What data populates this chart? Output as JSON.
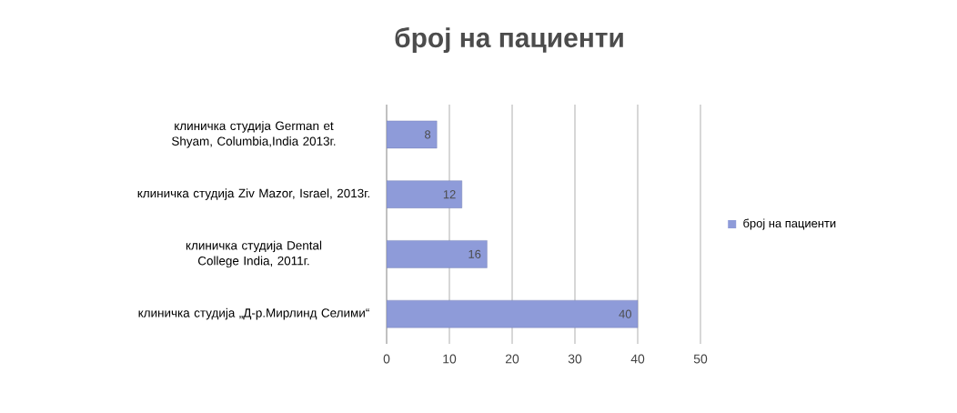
{
  "chart_data": {
    "type": "bar",
    "orientation": "horizontal",
    "title": "број на пациенти",
    "categories": [
      "клиничка студија German et Shyam, Columbia,India 2013г.",
      "клиничка студија Ziv Mazor, Israel, 2013г.",
      "клиничка студија Dental College India, 2011г.",
      "клиничка студија „Д-р.Мирлинд Селими“"
    ],
    "series": [
      {
        "name": "број на пациенти",
        "color": "#8e9bd9",
        "values": [
          8,
          12,
          16,
          40
        ]
      }
    ],
    "xlim": [
      0,
      50
    ],
    "xticks": [
      0,
      10,
      20,
      30,
      40,
      50
    ],
    "grid": "x",
    "legend": "right",
    "data_labels": true
  }
}
